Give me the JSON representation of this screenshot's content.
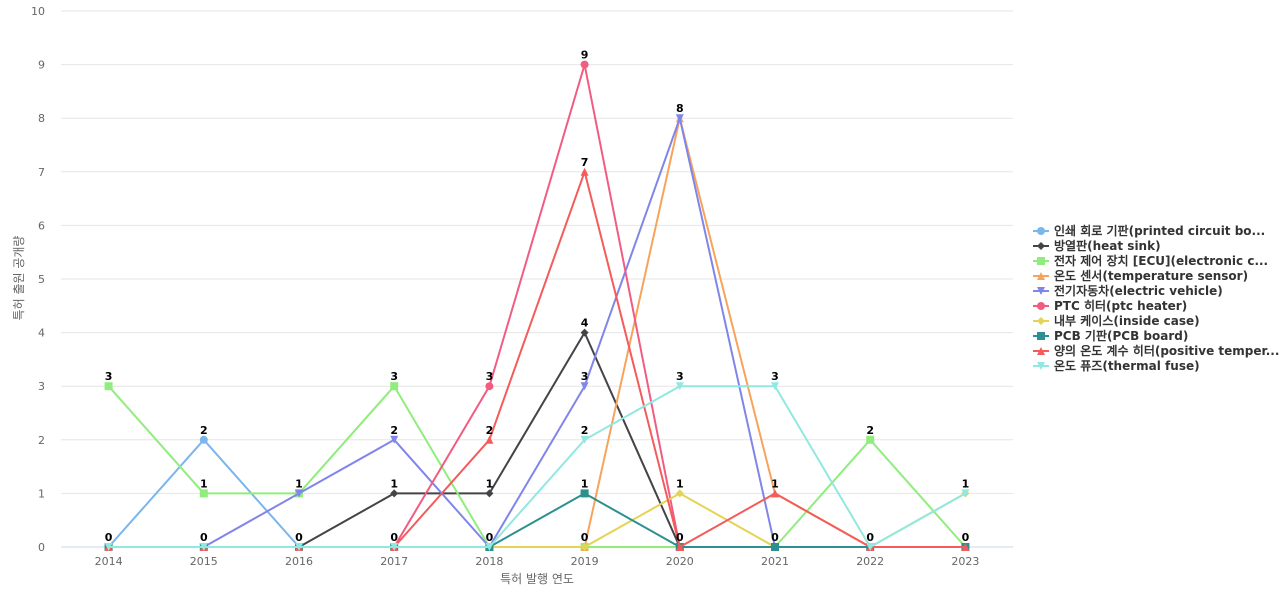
{
  "chart_data": {
    "type": "line",
    "xlabel": "특허 발행 연도",
    "ylabel": "특허 출원 공개량",
    "x": [
      "2014",
      "2015",
      "2016",
      "2017",
      "2018",
      "2019",
      "2020",
      "2021",
      "2022",
      "2023"
    ],
    "ylim": [
      0,
      10
    ],
    "yticks": [
      0,
      1,
      2,
      3,
      4,
      5,
      6,
      7,
      8,
      9,
      10
    ],
    "grid": true,
    "legend_position": "right",
    "series": [
      {
        "name": "인쇄 회로 기판(printed circuit bo...",
        "color": "#7cb5ec",
        "marker": "circle",
        "values": [
          0,
          2,
          0,
          0,
          0,
          0,
          0,
          0,
          0,
          0
        ]
      },
      {
        "name": "방열판(heat sink)",
        "color": "#434348",
        "marker": "diamond",
        "values": [
          0,
          0,
          0,
          1,
          1,
          4,
          0,
          0,
          0,
          0
        ]
      },
      {
        "name": "전자 제어 장치 [ECU](electronic c...",
        "color": "#90ed7d",
        "marker": "square",
        "values": [
          3,
          1,
          1,
          3,
          0,
          0,
          0,
          0,
          2,
          0
        ]
      },
      {
        "name": "온도 센서(temperature sensor)",
        "color": "#f7a35c",
        "marker": "triangle",
        "values": [
          0,
          0,
          0,
          0,
          0,
          0,
          8,
          1,
          0,
          0
        ]
      },
      {
        "name": "전기자동차(electric vehicle)",
        "color": "#8085e9",
        "marker": "triangle-down",
        "values": [
          0,
          0,
          1,
          2,
          0,
          3,
          8,
          0,
          0,
          0
        ]
      },
      {
        "name": "PTC 히터(ptc heater)",
        "color": "#f15c80",
        "marker": "circle",
        "values": [
          0,
          0,
          0,
          0,
          3,
          9,
          0,
          0,
          0,
          0
        ]
      },
      {
        "name": "내부 케이스(inside case)",
        "color": "#e4d354",
        "marker": "diamond",
        "values": [
          0,
          0,
          0,
          0,
          0,
          0,
          1,
          0,
          0,
          1
        ]
      },
      {
        "name": "PCB 기판(PCB board)",
        "color": "#2b908f",
        "marker": "square",
        "values": [
          0,
          0,
          0,
          0,
          0,
          1,
          0,
          0,
          0,
          0
        ]
      },
      {
        "name": "양의 온도 계수 히터(positive temper...",
        "color": "#f45b5b",
        "marker": "triangle",
        "values": [
          0,
          0,
          0,
          0,
          2,
          7,
          0,
          1,
          0,
          0
        ]
      },
      {
        "name": "온도 퓨즈(thermal fuse)",
        "color": "#91e8e1",
        "marker": "triangle-down",
        "values": [
          0,
          0,
          0,
          0,
          0,
          2,
          3,
          3,
          0,
          1
        ]
      }
    ],
    "data_labels": [
      {
        "series": 2,
        "x": "2014",
        "text": "3"
      },
      {
        "series": 0,
        "x": "2014",
        "text": "0"
      },
      {
        "series": 0,
        "x": "2015",
        "text": "2"
      },
      {
        "series": 2,
        "x": "2015",
        "text": "1"
      },
      {
        "series": 1,
        "x": "2015",
        "text": "0"
      },
      {
        "series": 2,
        "x": "2016",
        "text": "1"
      },
      {
        "series": 1,
        "x": "2016",
        "text": "0"
      },
      {
        "series": 2,
        "x": "2017",
        "text": "3"
      },
      {
        "series": 4,
        "x": "2017",
        "text": "2"
      },
      {
        "series": 1,
        "x": "2017",
        "text": "1"
      },
      {
        "series": 0,
        "x": "2017",
        "text": "0"
      },
      {
        "series": 5,
        "x": "2018",
        "text": "3"
      },
      {
        "series": 8,
        "x": "2018",
        "text": "2"
      },
      {
        "series": 1,
        "x": "2018",
        "text": "1"
      },
      {
        "series": 0,
        "x": "2018",
        "text": "0"
      },
      {
        "series": 5,
        "x": "2019",
        "text": "9"
      },
      {
        "series": 8,
        "x": "2019",
        "text": "7"
      },
      {
        "series": 1,
        "x": "2019",
        "text": "4"
      },
      {
        "series": 4,
        "x": "2019",
        "text": "3"
      },
      {
        "series": 9,
        "x": "2019",
        "text": "2"
      },
      {
        "series": 7,
        "x": "2019",
        "text": "1"
      },
      {
        "series": 3,
        "x": "2019",
        "text": "0"
      },
      {
        "series": 4,
        "x": "2020",
        "text": "8"
      },
      {
        "series": 9,
        "x": "2020",
        "text": "3"
      },
      {
        "series": 6,
        "x": "2020",
        "text": "1"
      },
      {
        "series": 0,
        "x": "2020",
        "text": "0"
      },
      {
        "series": 9,
        "x": "2021",
        "text": "3"
      },
      {
        "series": 8,
        "x": "2021",
        "text": "1"
      },
      {
        "series": 7,
        "x": "2021",
        "text": "0"
      },
      {
        "series": 2,
        "x": "2022",
        "text": "2"
      },
      {
        "series": 0,
        "x": "2022",
        "text": "0"
      },
      {
        "series": 9,
        "x": "2023",
        "text": "1"
      },
      {
        "series": 1,
        "x": "2023",
        "text": "0"
      }
    ]
  }
}
